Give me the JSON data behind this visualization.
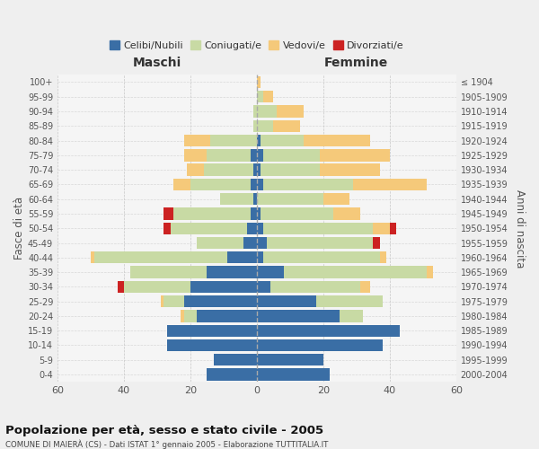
{
  "age_groups": [
    "0-4",
    "5-9",
    "10-14",
    "15-19",
    "20-24",
    "25-29",
    "30-34",
    "35-39",
    "40-44",
    "45-49",
    "50-54",
    "55-59",
    "60-64",
    "65-69",
    "70-74",
    "75-79",
    "80-84",
    "85-89",
    "90-94",
    "95-99",
    "100+"
  ],
  "birth_years": [
    "2000-2004",
    "1995-1999",
    "1990-1994",
    "1985-1989",
    "1980-1984",
    "1975-1979",
    "1970-1974",
    "1965-1969",
    "1960-1964",
    "1955-1959",
    "1950-1954",
    "1945-1949",
    "1940-1944",
    "1935-1939",
    "1930-1934",
    "1925-1929",
    "1920-1924",
    "1915-1919",
    "1910-1914",
    "1905-1909",
    "≤ 1904"
  ],
  "colors": {
    "celibi": "#3a6ea5",
    "coniugati": "#c8daa4",
    "vedovi": "#f5c97a",
    "divorziati": "#cc2222"
  },
  "maschi": {
    "celibi": [
      15,
      13,
      27,
      27,
      18,
      22,
      20,
      15,
      9,
      4,
      3,
      2,
      1,
      2,
      1,
      2,
      0,
      0,
      0,
      0,
      0
    ],
    "coniugati": [
      0,
      0,
      0,
      0,
      4,
      6,
      20,
      23,
      40,
      14,
      23,
      23,
      10,
      18,
      15,
      13,
      14,
      1,
      1,
      0,
      0
    ],
    "vedovi": [
      0,
      0,
      0,
      0,
      1,
      1,
      0,
      0,
      1,
      0,
      0,
      0,
      0,
      5,
      5,
      7,
      8,
      0,
      0,
      0,
      0
    ],
    "divorziati": [
      0,
      0,
      0,
      0,
      0,
      0,
      2,
      0,
      0,
      0,
      2,
      3,
      0,
      0,
      0,
      0,
      0,
      0,
      0,
      0,
      0
    ]
  },
  "femmine": {
    "celibi": [
      22,
      20,
      38,
      43,
      25,
      18,
      4,
      8,
      2,
      3,
      2,
      1,
      0,
      2,
      1,
      2,
      1,
      0,
      0,
      0,
      0
    ],
    "coniugati": [
      0,
      0,
      0,
      0,
      7,
      20,
      27,
      43,
      35,
      32,
      33,
      22,
      20,
      27,
      18,
      17,
      13,
      5,
      6,
      2,
      0
    ],
    "vedovi": [
      0,
      0,
      0,
      0,
      0,
      0,
      3,
      2,
      2,
      0,
      5,
      8,
      8,
      22,
      18,
      21,
      20,
      8,
      8,
      3,
      1
    ],
    "divorziati": [
      0,
      0,
      0,
      0,
      0,
      0,
      0,
      0,
      0,
      2,
      2,
      0,
      0,
      0,
      0,
      0,
      0,
      0,
      0,
      0,
      0
    ]
  },
  "xlim": 60,
  "title_main": "Popolazione per età, sesso e stato civile - 2005",
  "title_sub": "COMUNE DI MAIERÀ (CS) - Dati ISTAT 1° gennaio 2005 - Elaborazione TUTTITALIA.IT",
  "ylabel_left": "Fasce di età",
  "ylabel_right": "Anni di nascita",
  "xlabel_left": "Maschi",
  "xlabel_right": "Femmine",
  "legend_labels": [
    "Celibi/Nubili",
    "Coniugati/e",
    "Vedovi/e",
    "Divorziati/e"
  ],
  "bg_color": "#efefef",
  "plot_bg": "#f5f5f5"
}
